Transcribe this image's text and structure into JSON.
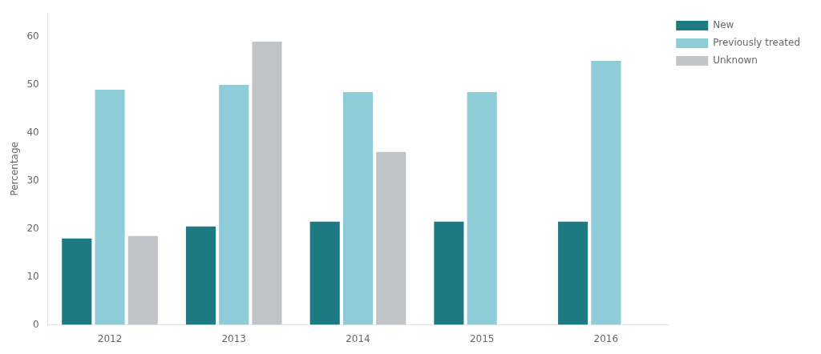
{
  "chart_data": {
    "type": "bar",
    "categories": [
      2012,
      2013,
      2014,
      2015,
      2016
    ],
    "series": [
      {
        "name": "New",
        "color": "#1d7a82",
        "values": [
          18.0,
          20.5,
          21.5,
          21.5,
          21.5
        ]
      },
      {
        "name": "Previously treated",
        "color": "#8ecdd8",
        "values": [
          49.0,
          50.0,
          48.5,
          48.5,
          55.0
        ]
      },
      {
        "name": "Unknown",
        "color": "#c0c4c6",
        "values": [
          18.5,
          59.0,
          36.0,
          null,
          null
        ]
      }
    ],
    "ylabel": "Percentage",
    "ylim": [
      0,
      65
    ],
    "yticks": [
      0,
      10,
      20,
      30,
      40,
      50,
      60
    ],
    "grid": false,
    "legend": "right"
  }
}
